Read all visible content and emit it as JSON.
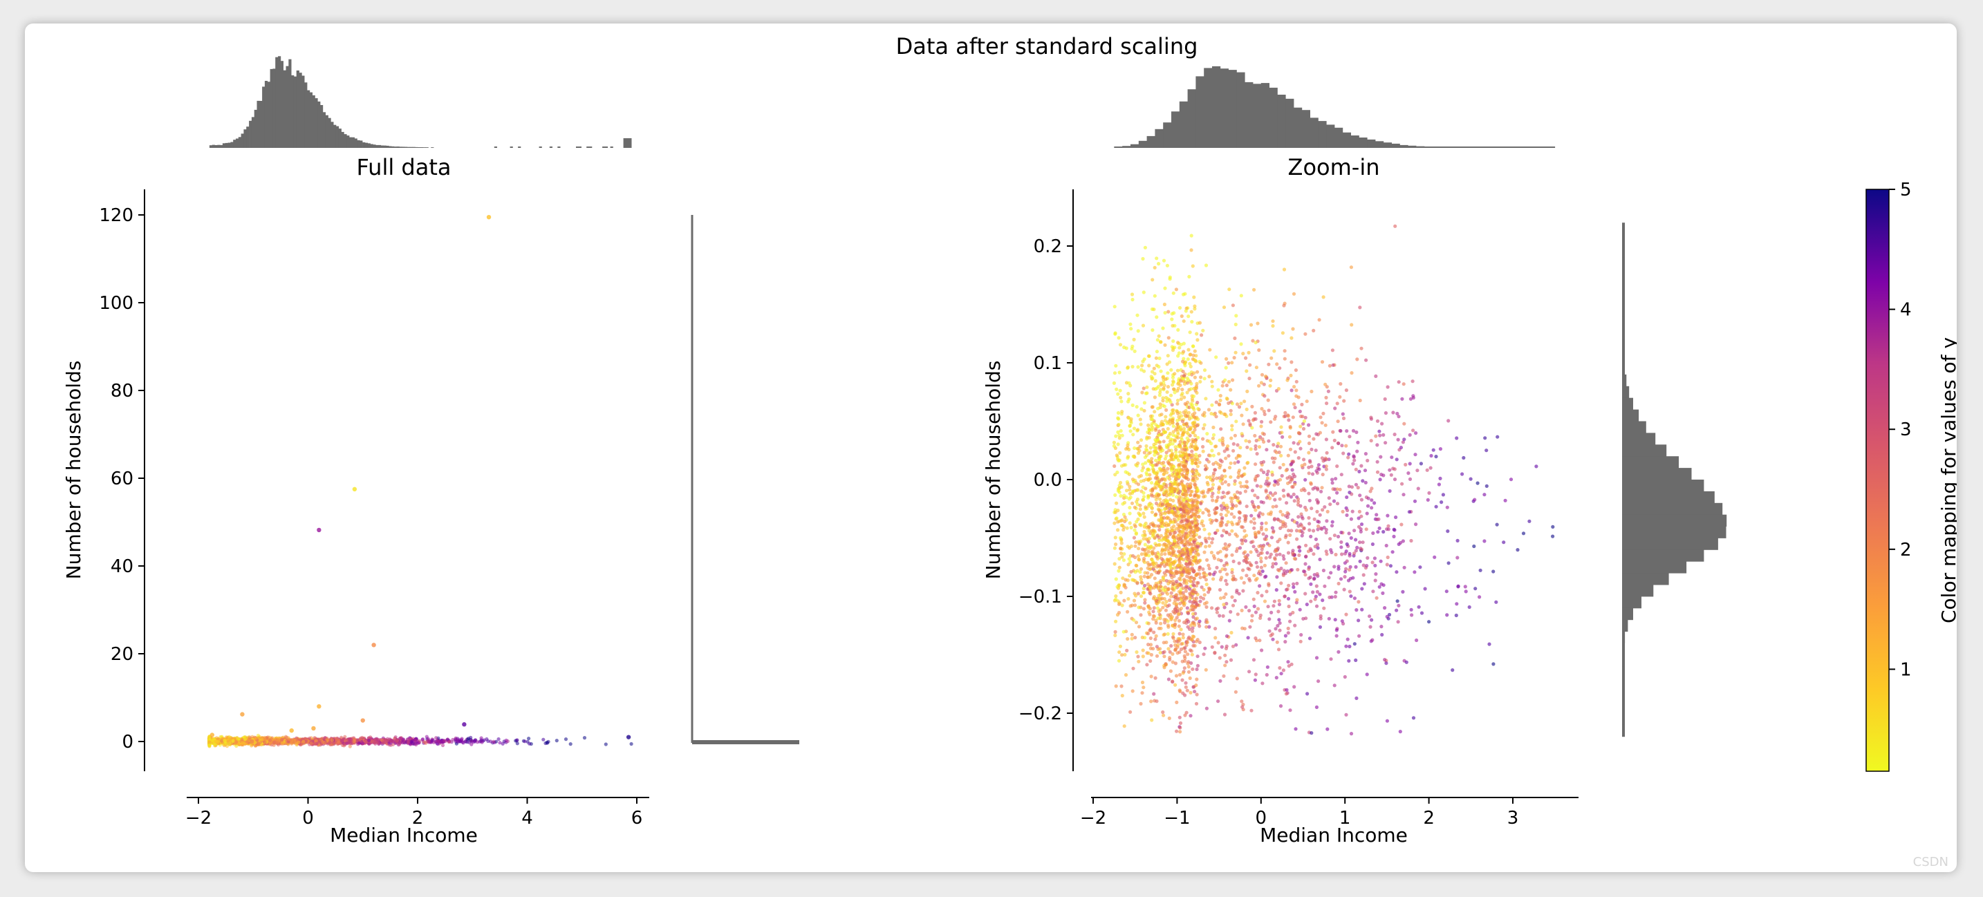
{
  "colors": {
    "hist": "#6b6b6b",
    "axis": "#000000",
    "colormap": [
      "#0d0887",
      "#5302a3",
      "#8b0aa5",
      "#b83289",
      "#db5c68",
      "#f48849",
      "#febd2a",
      "#f0f921"
    ]
  },
  "watermark": "CSDN",
  "chart_data": {
    "title": "Data after standard scaling",
    "panels": [
      {
        "id": "full",
        "type": "scatter",
        "title": "Full data",
        "xlabel": "Median Income",
        "ylabel": "Number of households",
        "xlim": [
          -2.2,
          6.2
        ],
        "ylim": [
          -6,
          126
        ],
        "xticks": [
          -2,
          0,
          2,
          4,
          6
        ],
        "yticks": [
          0,
          20,
          40,
          60,
          80,
          100,
          120
        ],
        "bulk_band": {
          "x_range": [
            -1.8,
            5.9
          ],
          "y": 0.1
        },
        "outliers": [
          {
            "x": 3.3,
            "y": 119.5,
            "c": 0.8
          },
          {
            "x": 0.85,
            "y": 57.5,
            "c": 0.4
          },
          {
            "x": 0.2,
            "y": 48.2,
            "c": 3.4
          },
          {
            "x": 1.2,
            "y": 22.0,
            "c": 1.5
          },
          {
            "x": -1.2,
            "y": 6.2,
            "c": 1.2
          },
          {
            "x": 0.2,
            "y": 8.0,
            "c": 1.0
          },
          {
            "x": 1.0,
            "y": 4.8,
            "c": 1.4
          },
          {
            "x": 2.85,
            "y": 3.9,
            "c": 4.2
          },
          {
            "x": 0.1,
            "y": 3.0,
            "c": 1.1
          },
          {
            "x": -0.3,
            "y": 2.5,
            "c": 0.9
          },
          {
            "x": 5.85,
            "y": 1.0,
            "c": 4.8
          },
          {
            "x": -1.75,
            "y": 1.5,
            "c": 1.0
          }
        ]
      },
      {
        "id": "zoom",
        "type": "scatter",
        "title": "Zoom-in",
        "xlabel": "Median Income",
        "ylabel": "Number of households",
        "xlim": [
          -2.05,
          3.8
        ],
        "ylim": [
          -0.25,
          0.25
        ],
        "xticks": [
          -2,
          -1,
          0,
          1,
          2,
          3
        ],
        "yticks": [
          -0.2,
          -0.1,
          0.0,
          0.1,
          0.2
        ],
        "point_cloud": {
          "n": 3800,
          "x_mode": -0.75,
          "y_center": -0.03
        }
      }
    ],
    "marginals": {
      "full_x_hist": {
        "type": "histogram",
        "range": [
          -1.8,
          5.9
        ]
      },
      "full_y_hist": {
        "type": "histogram",
        "range": [
          -6,
          120
        ],
        "peak_at": 0
      },
      "zoom_x_hist": {
        "type": "histogram",
        "range": [
          -1.75,
          3.5
        ]
      },
      "zoom_y_hist": {
        "type": "histogram",
        "range": [
          -0.22,
          0.22
        ],
        "peak_at": -0.04
      }
    },
    "colorbar": {
      "label": "Color mapping for values of y",
      "range": [
        0.15,
        5.0
      ],
      "ticks": [
        1,
        2,
        3,
        4,
        5
      ],
      "colormap": "plasma_r"
    }
  }
}
